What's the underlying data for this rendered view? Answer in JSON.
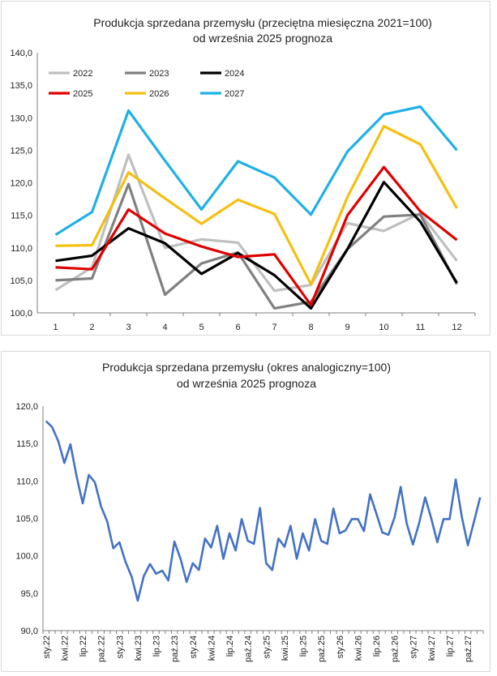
{
  "chart_data": [
    {
      "type": "line",
      "title": "Produkcja sprzedana przemysłu (przeciętna miesięczna 2021=100)",
      "subtitle": "od września 2025 prognoza",
      "categories": [
        "1",
        "2",
        "3",
        "4",
        "5",
        "6",
        "7",
        "8",
        "9",
        "10",
        "11",
        "12"
      ],
      "ylim": [
        100,
        140
      ],
      "yticks": [
        "100,0",
        "105,0",
        "110,0",
        "115,0",
        "120,0",
        "125,0",
        "130,0",
        "135,0",
        "140,0"
      ],
      "legend_position": "top-left",
      "grid": false,
      "series": [
        {
          "name": "2022",
          "color": "#bfbfbf",
          "values": [
            103.5,
            107.0,
            124.3,
            110.0,
            111.3,
            110.8,
            103.4,
            104.3,
            113.8,
            112.6,
            115.3,
            108.0
          ]
        },
        {
          "name": "2023",
          "color": "#808080",
          "values": [
            105.0,
            105.3,
            119.8,
            102.8,
            107.6,
            109.3,
            100.7,
            101.7,
            109.8,
            114.8,
            115.1,
            104.4
          ]
        },
        {
          "name": "2024",
          "color": "#000000",
          "values": [
            108.0,
            108.8,
            113.0,
            110.7,
            106.0,
            109.2,
            105.8,
            100.7,
            109.8,
            120.1,
            114.0,
            104.6
          ]
        },
        {
          "name": "2025",
          "color": "#e00000",
          "values": [
            107.0,
            106.7,
            115.9,
            112.2,
            110.2,
            108.6,
            109.0,
            101.2,
            115.0,
            122.4,
            115.6,
            111.2
          ]
        },
        {
          "name": "2026",
          "color": "#f5bf10",
          "values": [
            110.3,
            110.4,
            121.6,
            117.6,
            113.7,
            117.4,
            115.2,
            104.4,
            117.8,
            128.7,
            125.9,
            116.1
          ]
        },
        {
          "name": "2027",
          "color": "#1fb0e6",
          "values": [
            112.0,
            115.5,
            131.1,
            123.4,
            115.9,
            123.3,
            120.8,
            115.1,
            124.8,
            130.5,
            131.7,
            125.0
          ]
        }
      ]
    },
    {
      "type": "line",
      "title": "Produkcja sprzedana przemysłu (okres analogiczny=100)",
      "subtitle": "od września 2025 prognoza",
      "ylim": [
        90,
        120
      ],
      "yticks": [
        "90,0",
        "95,0",
        "100,0",
        "105,0",
        "110,0",
        "115,0",
        "120,0"
      ],
      "x_tick_labels": [
        "sty.22",
        "kwi.22",
        "lip.22",
        "paź.22",
        "sty.23",
        "kwi.23",
        "lip.23",
        "paź.23",
        "sty.24",
        "kwi.24",
        "lip.24",
        "paź.24",
        "sty.25",
        "kwi.25",
        "lip.25",
        "paź.25",
        "sty.26",
        "kwi.26",
        "lip.26",
        "paź.26",
        "sty.27",
        "kwi.27",
        "lip.27",
        "paź.27"
      ],
      "grid": false,
      "series": [
        {
          "color": "#4472c4",
          "values": [
            118.0,
            117.2,
            115.3,
            112.4,
            114.9,
            110.6,
            107.0,
            110.8,
            109.8,
            106.6,
            104.6,
            101.0,
            101.8,
            99.2,
            97.2,
            94.0,
            97.3,
            98.9,
            97.6,
            98.0,
            96.7,
            101.9,
            99.6,
            96.5,
            99.0,
            98.1,
            102.3,
            101.1,
            104.0,
            99.6,
            103.0,
            100.7,
            104.9,
            102.0,
            101.6,
            106.4,
            99.0,
            98.1,
            102.3,
            101.2,
            104.0,
            99.6,
            103.0,
            100.7,
            104.9,
            102.0,
            101.6,
            106.3,
            103.0,
            103.4,
            104.9,
            104.9,
            103.3,
            108.2,
            105.7,
            103.1,
            102.8,
            105.1,
            109.2,
            104.3,
            101.5,
            104.3,
            107.8,
            105.0,
            101.8,
            104.9,
            104.9,
            110.2,
            105.2,
            101.4,
            104.6,
            107.8
          ]
        }
      ]
    }
  ]
}
